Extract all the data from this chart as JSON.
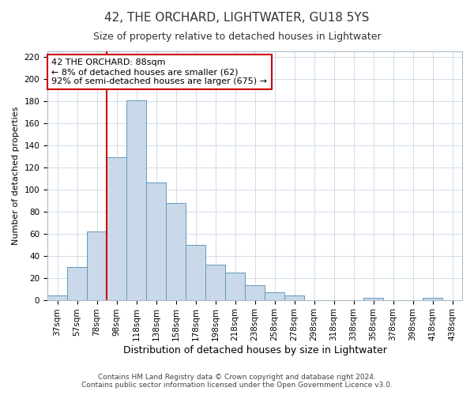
{
  "title": "42, THE ORCHARD, LIGHTWATER, GU18 5YS",
  "subtitle": "Size of property relative to detached houses in Lightwater",
  "xlabel": "Distribution of detached houses by size in Lightwater",
  "ylabel": "Number of detached properties",
  "footer_line1": "Contains HM Land Registry data © Crown copyright and database right 2024.",
  "footer_line2": "Contains public sector information licensed under the Open Government Licence v3.0.",
  "bar_labels": [
    "37sqm",
    "57sqm",
    "78sqm",
    "98sqm",
    "118sqm",
    "138sqm",
    "158sqm",
    "178sqm",
    "198sqm",
    "218sqm",
    "238sqm",
    "258sqm",
    "278sqm",
    "298sqm",
    "318sqm",
    "338sqm",
    "358sqm",
    "378sqm",
    "398sqm",
    "418sqm",
    "438sqm"
  ],
  "bar_values": [
    4,
    30,
    62,
    129,
    181,
    106,
    88,
    50,
    32,
    25,
    13,
    7,
    4,
    0,
    0,
    0,
    2,
    0,
    0,
    2,
    0
  ],
  "bar_color": "#c9d9ea",
  "bar_edgecolor": "#6699bb",
  "vline_index": 3,
  "annotation_line1": "42 THE ORCHARD: 88sqm",
  "annotation_line2": "← 8% of detached houses are smaller (62)",
  "annotation_line3": "92% of semi-detached houses are larger (675) →",
  "annotation_box_facecolor": "#ffffff",
  "annotation_box_edgecolor": "#cc0000",
  "vline_color": "#cc0000",
  "ylim_max": 225,
  "yticks": [
    0,
    20,
    40,
    60,
    80,
    100,
    120,
    140,
    160,
    180,
    200,
    220
  ],
  "grid_color": "#d0dce8",
  "title_fontsize": 11,
  "subtitle_fontsize": 9,
  "xlabel_fontsize": 9,
  "ylabel_fontsize": 8,
  "footer_fontsize": 6.5,
  "tick_fontsize": 7.5,
  "ann_fontsize": 8
}
